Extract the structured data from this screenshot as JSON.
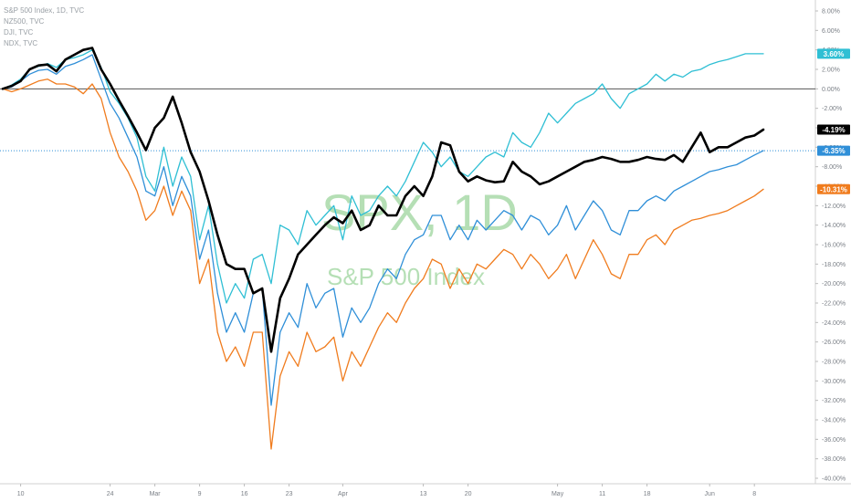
{
  "legend": {
    "spx": "S&P 500 Index, 1D, TVC",
    "nz": "NZ500, TVC",
    "dji": "DJI, TVC",
    "ndx": "NDX, TVC"
  },
  "watermark": {
    "symbol": "SPX, 1D",
    "name": "S&P 500 Index"
  },
  "colors": {
    "spx": "#000000",
    "nz": "#2fbfd4",
    "dji": "#2f8fd8",
    "ndx": "#f07c1e",
    "zero_line": "#555555",
    "grid": "#e8e8e8"
  },
  "chart_data": {
    "type": "line",
    "ylim": [
      -40,
      8
    ],
    "y_tick_labels": [
      "8.00%",
      "6.00%",
      "4.00%",
      "2.00%",
      "0.00%",
      "-2.00%",
      "-4.00%",
      "-6.00%",
      "-8.00%",
      "-10.00%",
      "-12.00%",
      "-14.00%",
      "-16.00%",
      "-18.00%",
      "-20.00%",
      "-22.00%",
      "-24.00%",
      "-26.00%",
      "-28.00%",
      "-30.00%",
      "-32.00%",
      "-34.00%",
      "-36.00%",
      "-38.00%",
      "-40.00%"
    ],
    "y_tick_values": [
      8,
      6,
      4,
      2,
      0,
      -2,
      -4,
      -6,
      -8,
      -10,
      -12,
      -14,
      -16,
      -18,
      -20,
      -22,
      -24,
      -26,
      -28,
      -30,
      -32,
      -34,
      -36,
      -38,
      -40
    ],
    "x_tick_labels": [
      "10",
      "24",
      "Mar",
      "9",
      "16",
      "23",
      "Apr",
      "13",
      "20",
      "May",
      "11",
      "18",
      "Jun",
      "8"
    ],
    "x_tick_positions": [
      2,
      12,
      17,
      22,
      27,
      32,
      38,
      47,
      52,
      62,
      67,
      72,
      79,
      84
    ],
    "x_count": 86,
    "last_values": [
      {
        "series": "NZ500, TVC",
        "label": "3.60%"
      },
      {
        "series": "S&P 500 Index, 1D, TVC",
        "label": "-4.19%"
      },
      {
        "series": "DJI, TVC",
        "label": "-6.35%"
      },
      {
        "series": "NDX, TVC",
        "label": "-10.31%"
      }
    ],
    "series": [
      {
        "name": "S&P 500 Index, 1D, TVC",
        "key": "spx",
        "values": [
          0,
          0.3,
          0.8,
          2.0,
          2.4,
          2.5,
          1.8,
          3.0,
          3.5,
          4.0,
          4.2,
          2.0,
          0.5,
          -1.2,
          -2.8,
          -4.5,
          -6.3,
          -4.0,
          -3.0,
          -0.8,
          -3.5,
          -6.5,
          -8.5,
          -11.5,
          -15.0,
          -18.0,
          -18.5,
          -18.5,
          -21.0,
          -20.5,
          -27.0,
          -21.5,
          -19.5,
          -17.0,
          -16.0,
          -15.0,
          -14.0,
          -13.2,
          -13.8,
          -12.5,
          -14.5,
          -14.0,
          -12.0,
          -13.0,
          -13.0,
          -11.0,
          -10.0,
          -11.0,
          -9.0,
          -5.5,
          -5.8,
          -8.5,
          -9.5,
          -9.0,
          -9.4,
          -9.6,
          -9.5,
          -7.5,
          -8.5,
          -9.0,
          -9.8,
          -9.5,
          -9.0,
          -8.5,
          -8.0,
          -7.5,
          -7.3,
          -7.0,
          -7.2,
          -7.5,
          -7.5,
          -7.3,
          -7.0,
          -7.2,
          -7.3,
          -6.8,
          -7.5,
          -6.0,
          -4.5,
          -6.5,
          -6.0,
          -6.0,
          -5.5,
          -5.0,
          -4.8,
          -4.19
        ]
      },
      {
        "name": "NZ500, TVC",
        "key": "nz",
        "values": [
          0,
          0.4,
          1.0,
          2.0,
          2.3,
          2.6,
          2.2,
          3.0,
          3.2,
          3.5,
          4.0,
          2.2,
          -0.3,
          -1.5,
          -3.0,
          -5.0,
          -9.0,
          -10.5,
          -6.0,
          -10.0,
          -7.0,
          -9.0,
          -15.5,
          -12.0,
          -18.0,
          -22.0,
          -20.0,
          -21.5,
          -17.5,
          -17.0,
          -20.0,
          -14.0,
          -14.5,
          -16.0,
          -12.5,
          -14.0,
          -13.0,
          -12.0,
          -15.5,
          -11.0,
          -13.0,
          -12.5,
          -11.0,
          -10.0,
          -11.0,
          -9.5,
          -7.5,
          -5.5,
          -6.5,
          -8.0,
          -7.0,
          -8.5,
          -9.0,
          -8.0,
          -7.0,
          -6.5,
          -7.0,
          -4.5,
          -5.5,
          -6.0,
          -4.5,
          -2.5,
          -3.5,
          -2.5,
          -1.5,
          -1.0,
          -0.5,
          0.5,
          -1.0,
          -2.0,
          -0.5,
          0.0,
          0.5,
          1.5,
          0.8,
          1.5,
          1.2,
          1.8,
          2.0,
          2.5,
          2.8,
          3.0,
          3.3,
          3.6,
          3.6,
          3.6
        ]
      },
      {
        "name": "DJI, TVC",
        "key": "dji",
        "values": [
          0,
          0.2,
          0.8,
          1.5,
          1.9,
          2.0,
          1.5,
          2.3,
          2.6,
          3.0,
          3.5,
          1.0,
          -1.5,
          -3.0,
          -5.0,
          -7.0,
          -10.5,
          -11.0,
          -8.0,
          -12.0,
          -9.0,
          -11.0,
          -17.5,
          -14.5,
          -21.0,
          -25.0,
          -23.0,
          -25.0,
          -21.0,
          -20.5,
          -32.5,
          -25.0,
          -23.0,
          -24.5,
          -20.0,
          -22.5,
          -21.0,
          -20.5,
          -25.5,
          -22.5,
          -24.0,
          -22.5,
          -20.0,
          -18.5,
          -19.5,
          -17.0,
          -15.5,
          -15.0,
          -13.0,
          -13.0,
          -15.5,
          -14.0,
          -15.5,
          -13.5,
          -14.5,
          -13.5,
          -12.5,
          -13.0,
          -14.5,
          -13.0,
          -13.5,
          -15.0,
          -14.0,
          -12.0,
          -14.5,
          -13.0,
          -11.5,
          -12.5,
          -14.5,
          -15.0,
          -12.5,
          -12.5,
          -11.5,
          -11.0,
          -11.5,
          -10.5,
          -10.0,
          -9.5,
          -9.0,
          -8.5,
          -8.3,
          -8.0,
          -7.8,
          -7.3,
          -6.8,
          -6.35
        ]
      },
      {
        "name": "NDX, TVC",
        "key": "ndx",
        "values": [
          0,
          -0.3,
          0,
          0.4,
          0.8,
          1.0,
          0.5,
          0.5,
          0.2,
          -0.5,
          0.5,
          -1.0,
          -4.5,
          -7.0,
          -8.5,
          -10.5,
          -13.5,
          -12.5,
          -10.0,
          -13.0,
          -10.5,
          -12.5,
          -20.0,
          -17.5,
          -25.0,
          -28.0,
          -26.5,
          -28.5,
          -25.0,
          -25.0,
          -37.0,
          -29.5,
          -27.0,
          -28.5,
          -25.0,
          -27.0,
          -26.5,
          -25.5,
          -30.0,
          -27.0,
          -28.5,
          -26.5,
          -24.5,
          -23.0,
          -24.0,
          -22.0,
          -20.5,
          -19.5,
          -17.5,
          -18.0,
          -20.5,
          -18.5,
          -20.0,
          -18.0,
          -18.5,
          -17.5,
          -16.5,
          -17.0,
          -18.5,
          -17.0,
          -18.0,
          -19.5,
          -18.5,
          -17.0,
          -19.5,
          -17.5,
          -15.5,
          -17.0,
          -19.0,
          -19.5,
          -17.0,
          -17.0,
          -15.5,
          -15.0,
          -16.0,
          -14.5,
          -14.0,
          -13.5,
          -13.3,
          -13.0,
          -12.8,
          -12.5,
          -12.0,
          -11.5,
          -11.0,
          -10.31
        ]
      }
    ],
    "reference_lines": [
      {
        "value": 0,
        "style": "solid"
      },
      {
        "value": -6.35,
        "style": "dotted"
      }
    ]
  }
}
